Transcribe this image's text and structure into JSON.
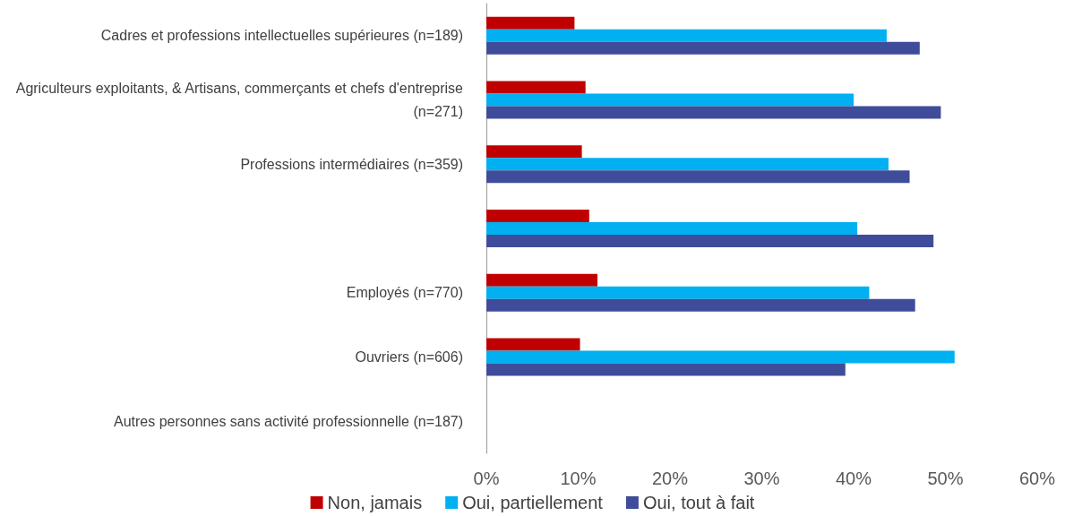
{
  "chart_data": {
    "type": "bar",
    "orientation": "horizontal",
    "categories": [
      "Cadres et professions intellectuelles supérieures (n=189)",
      "Agriculteurs exploitants, & Artisans, commerçants et chefs d'entreprise (n=271)",
      "Professions intermédiaires (n=359)",
      null,
      "Employés (n=770)",
      "Ouvriers (n=606)",
      "Autres personnes sans activité professionnelle (n=187)"
    ],
    "series": [
      {
        "name": "Non, jamais",
        "color": "#c00000",
        "values": [
          9.6,
          10.8,
          10.4,
          11.2,
          12.1,
          10.2,
          null
        ]
      },
      {
        "name": "Oui, partiellement",
        "color": "#00b0f0",
        "values": [
          43.6,
          40.0,
          43.8,
          40.4,
          41.7,
          51.0,
          null
        ]
      },
      {
        "name": "Oui, tout à fait",
        "color": "#3f4c9a",
        "values": [
          47.2,
          49.5,
          46.1,
          48.7,
          46.7,
          39.1,
          null
        ]
      }
    ],
    "xlim": [
      0,
      60
    ],
    "xticks": [
      {
        "value": 0,
        "label": "0%"
      },
      {
        "value": 10,
        "label": "10%"
      },
      {
        "value": 20,
        "label": "20%"
      },
      {
        "value": 30,
        "label": "30%"
      },
      {
        "value": 40,
        "label": "40%"
      },
      {
        "value": 50,
        "label": "50%"
      },
      {
        "value": 60,
        "label": "60%"
      }
    ],
    "grid": false,
    "legend": "bottom"
  }
}
